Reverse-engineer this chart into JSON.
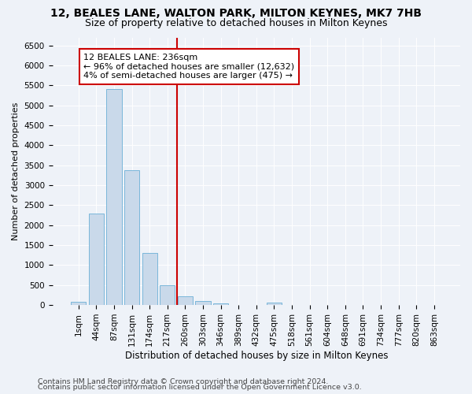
{
  "title1": "12, BEALES LANE, WALTON PARK, MILTON KEYNES, MK7 7HB",
  "title2": "Size of property relative to detached houses in Milton Keynes",
  "xlabel": "Distribution of detached houses by size in Milton Keynes",
  "ylabel": "Number of detached properties",
  "categories": [
    "1sqm",
    "44sqm",
    "87sqm",
    "131sqm",
    "174sqm",
    "217sqm",
    "260sqm",
    "303sqm",
    "346sqm",
    "389sqm",
    "432sqm",
    "475sqm",
    "518sqm",
    "561sqm",
    "604sqm",
    "648sqm",
    "691sqm",
    "734sqm",
    "777sqm",
    "820sqm",
    "863sqm"
  ],
  "values": [
    75,
    2300,
    5400,
    3380,
    1310,
    490,
    220,
    105,
    50,
    5,
    5,
    55,
    5,
    0,
    0,
    0,
    0,
    0,
    0,
    0,
    0
  ],
  "bar_color": "#c9d9ea",
  "bar_edge_color": "#6aafd6",
  "vline_x": 5.55,
  "vline_color": "#cc0000",
  "annotation_text": "12 BEALES LANE: 236sqm\n← 96% of detached houses are smaller (12,632)\n4% of semi-detached houses are larger (475) →",
  "annotation_box_color": "#ffffff",
  "annotation_box_edge": "#cc0000",
  "ylim": [
    0,
    6700
  ],
  "yticks": [
    0,
    500,
    1000,
    1500,
    2000,
    2500,
    3000,
    3500,
    4000,
    4500,
    5000,
    5500,
    6000,
    6500
  ],
  "footer1": "Contains HM Land Registry data © Crown copyright and database right 2024.",
  "footer2": "Contains public sector information licensed under the Open Government Licence v3.0.",
  "bg_color": "#eef2f8",
  "title1_fontsize": 10,
  "title2_fontsize": 9,
  "xlabel_fontsize": 8.5,
  "ylabel_fontsize": 8,
  "tick_fontsize": 7.5,
  "annotation_fontsize": 8,
  "footer_fontsize": 6.8
}
